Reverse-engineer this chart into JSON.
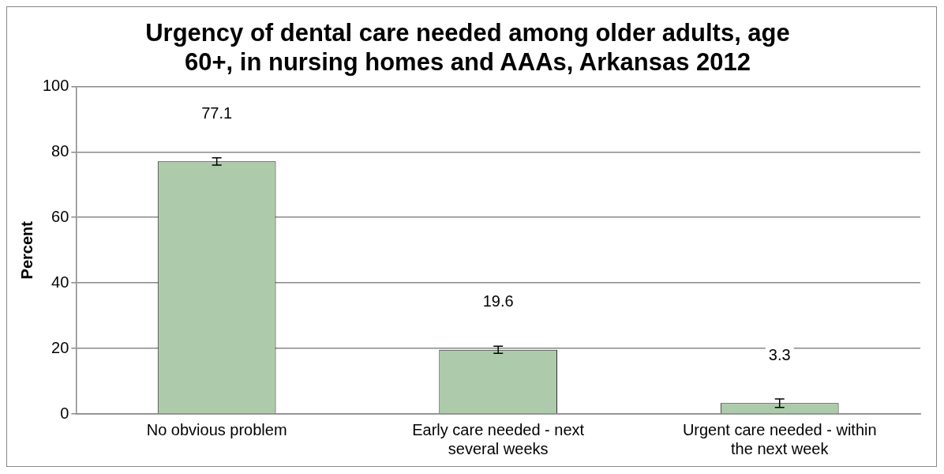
{
  "chart_data": {
    "type": "bar",
    "title": "Urgency of dental care needed among older adults, age 60+, in nursing homes and AAAs, Arkansas 2012",
    "ylabel": "Percent",
    "categories": [
      "No obvious problem",
      "Early care needed - next several weeks",
      "Urgent care needed - within the next week"
    ],
    "values": [
      77.1,
      19.6,
      3.3
    ],
    "errors": [
      1.1,
      1.1,
      1.3
    ],
    "color": "#adcbaa",
    "ylim": [
      0,
      100
    ],
    "yticks": [
      0,
      20,
      40,
      60,
      80,
      100
    ],
    "grid": "y",
    "legend": false,
    "data_labels": true
  }
}
